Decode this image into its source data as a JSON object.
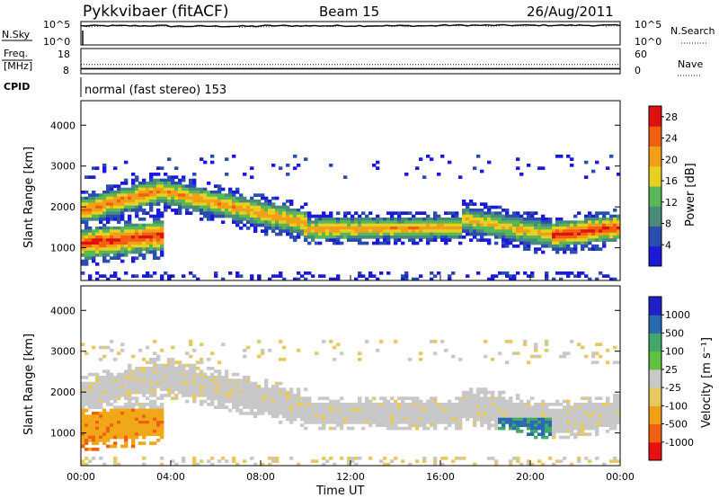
{
  "header": {
    "station": "Pykkvibaer (fitACF)",
    "beam": "Beam 15",
    "date": "26/Aug/2011"
  },
  "chart_data": [
    {
      "type": "line",
      "panel": "noise",
      "ylabel_left": "N.Sky",
      "ylabel_right": "N.Search",
      "left_ticks": [
        "10^5",
        "10^0"
      ],
      "right_ticks": [
        "10^5",
        "10^0"
      ],
      "legend_right": "N.Search ......",
      "ylim": [
        0,
        5
      ],
      "x": [
        "00:00",
        "04:00",
        "08:00",
        "12:00",
        "16:00",
        "20:00",
        "24:00"
      ],
      "series": [
        {
          "name": "N.Sky",
          "values": [
            4.1,
            4.0,
            4.1,
            4.1,
            4.2,
            4.2,
            4.1
          ]
        },
        {
          "name": "N.Search",
          "values": [
            4.0,
            3.9,
            4.0,
            4.0,
            4.1,
            4.1,
            4.0
          ]
        }
      ]
    },
    {
      "type": "line",
      "panel": "frequency",
      "ylabel_left": "Freq. [MHz]",
      "ylabel_right": "Nave",
      "left_ticks": [
        "18",
        "8"
      ],
      "right_ticks": [
        "60",
        "0"
      ],
      "legend_right": "Nave ....",
      "ylim": [
        8,
        18
      ],
      "x": [
        "00:00",
        "04:00",
        "08:00",
        "12:00",
        "16:00",
        "20:00",
        "24:00"
      ],
      "series": [
        {
          "name": "Freq.",
          "values": [
            10,
            10,
            10,
            10,
            10,
            10,
            10
          ]
        },
        {
          "name": "Nave",
          "values": [
            22,
            22,
            22,
            22,
            22,
            22,
            22
          ]
        }
      ]
    },
    {
      "type": "text",
      "panel": "cpid",
      "label": "CPID",
      "value": "normal (fast stereo) 153"
    },
    {
      "type": "heatmap",
      "panel": "power",
      "ylabel": "Slant Range [km]",
      "xlabel": "",
      "xlim": [
        "00:00",
        "24:00"
      ],
      "ylim": [
        200,
        4600
      ],
      "y_ticks": [
        1000,
        2000,
        3000,
        4000
      ],
      "colorbar": {
        "label": "Power [dB]",
        "ticks": [
          4,
          8,
          12,
          16,
          20,
          24,
          28
        ],
        "range": [
          0,
          30
        ]
      },
      "echo_bands": [
        {
          "hours": [
            0,
            3.6
          ],
          "center_km": [
            1100,
            1300
          ],
          "width_km": 350,
          "peak_db": 28
        },
        {
          "hours": [
            0,
            3.5
          ],
          "center_km": [
            1900,
            2400
          ],
          "width_km": 300,
          "peak_db": 24
        },
        {
          "hours": [
            3.5,
            10
          ],
          "center_km": [
            2400,
            1600
          ],
          "width_km": 300,
          "peak_db": 22
        },
        {
          "hours": [
            10,
            17
          ],
          "center_km": [
            1450,
            1500
          ],
          "width_km": 250,
          "peak_db": 22
        },
        {
          "hours": [
            17,
            21
          ],
          "center_km": [
            1700,
            1300
          ],
          "width_km": 300,
          "peak_db": 20
        },
        {
          "hours": [
            21,
            24
          ],
          "center_km": [
            1300,
            1500
          ],
          "width_km": 300,
          "peak_db": 28
        }
      ]
    },
    {
      "type": "heatmap",
      "panel": "velocity",
      "ylabel": "Slant Range [km]",
      "xlabel": "Time UT",
      "xlim": [
        "00:00",
        "24:00"
      ],
      "ylim": [
        200,
        4600
      ],
      "y_ticks": [
        1000,
        2000,
        3000,
        4000
      ],
      "x_ticks": [
        "00:00",
        "04:00",
        "08:00",
        "12:00",
        "16:00",
        "20:00",
        "00:00"
      ],
      "colorbar": {
        "label": "Velocity [m s⁻¹]",
        "ticks": [
          1000,
          500,
          100,
          25,
          -25,
          -100,
          -500,
          -1000
        ]
      }
    }
  ]
}
